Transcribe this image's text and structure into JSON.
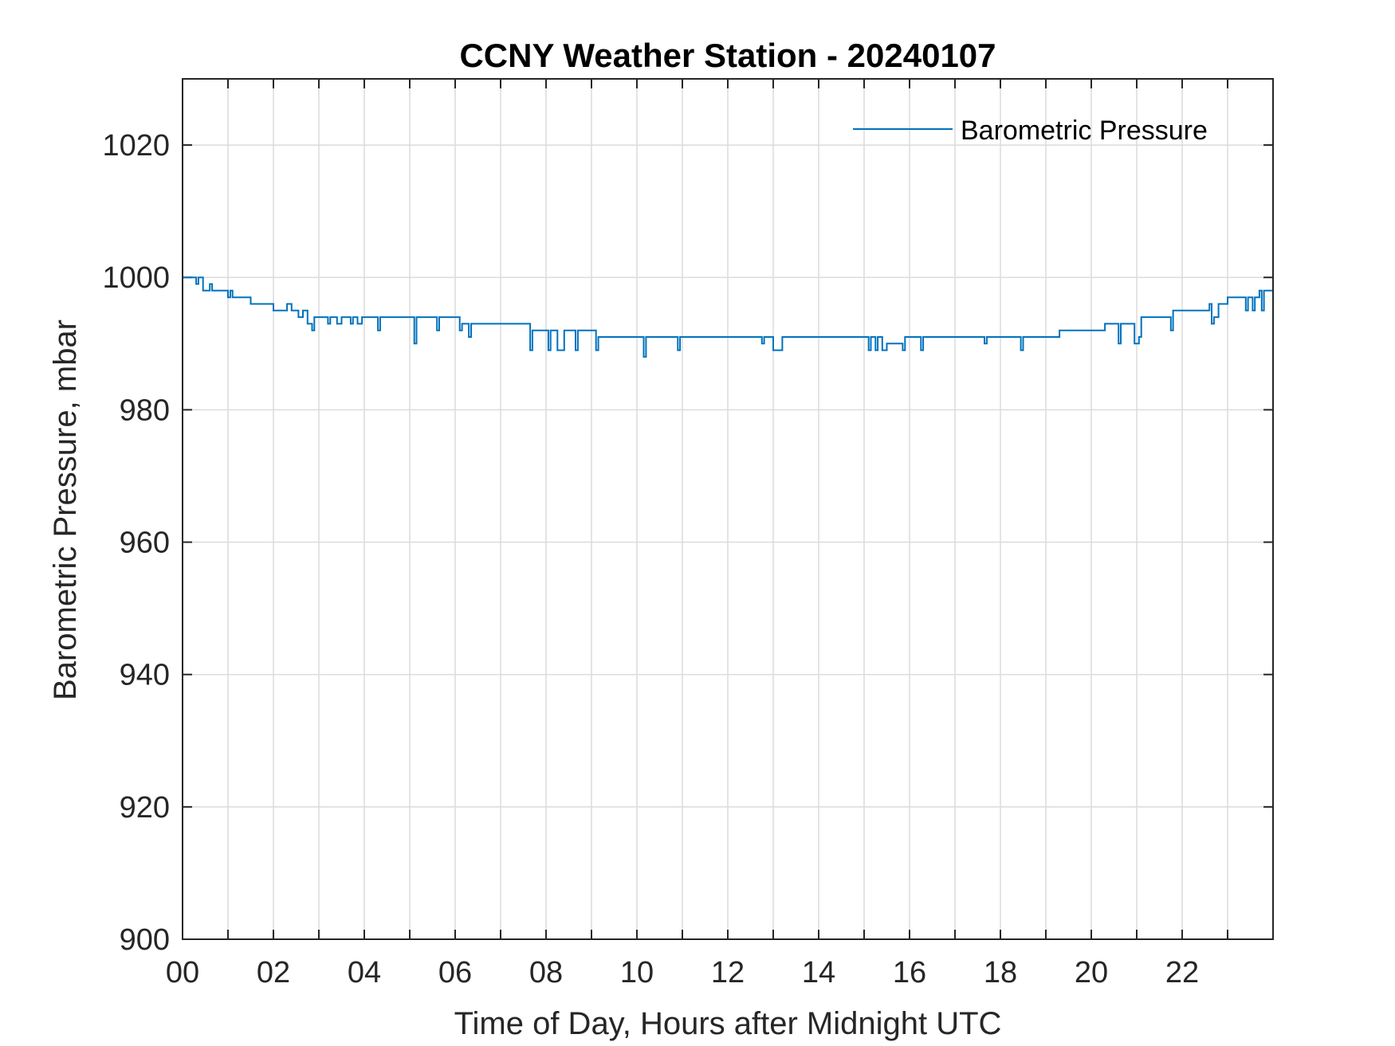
{
  "chart_data": {
    "type": "line",
    "title": "CCNY Weather Station - 20240107",
    "xlabel": "Time of Day, Hours after Midnight UTC",
    "ylabel": "Barometric Pressure, mbar",
    "xlim": [
      0,
      24
    ],
    "ylim": [
      900,
      1030
    ],
    "x_ticks": [
      0,
      2,
      4,
      6,
      8,
      10,
      12,
      14,
      16,
      18,
      20,
      22
    ],
    "x_tick_labels": [
      "00",
      "02",
      "04",
      "06",
      "08",
      "10",
      "12",
      "14",
      "16",
      "18",
      "20",
      "22"
    ],
    "x_minor_grid": [
      1,
      3,
      5,
      7,
      9,
      11,
      13,
      15,
      17,
      19,
      21,
      23
    ],
    "y_ticks": [
      900,
      920,
      940,
      960,
      980,
      1000,
      1020
    ],
    "y_tick_labels": [
      "900",
      "920",
      "940",
      "960",
      "980",
      "1000",
      "1020"
    ],
    "grid": true,
    "legend": {
      "position": "top-right",
      "entries": [
        "Barometric Pressure"
      ]
    },
    "series": [
      {
        "name": "Barometric Pressure",
        "color": "#0072BD",
        "step": true,
        "x": [
          0,
          0.3,
          0.35,
          0.45,
          0.6,
          0.65,
          0.7,
          1.0,
          1.05,
          1.1,
          1.2,
          1.5,
          2.0,
          2.3,
          2.4,
          2.45,
          2.55,
          2.65,
          2.75,
          2.85,
          2.9,
          3.2,
          3.25,
          3.4,
          3.5,
          3.7,
          3.75,
          3.85,
          3.95,
          4.3,
          4.35,
          5.1,
          5.15,
          5.6,
          5.65,
          6.1,
          6.15,
          6.3,
          6.35,
          7.65,
          7.7,
          8.05,
          8.1,
          8.25,
          8.4,
          8.65,
          8.7,
          9.1,
          9.15,
          10.15,
          10.2,
          10.9,
          10.95,
          12.75,
          12.8,
          13.0,
          13.2,
          15.1,
          15.15,
          15.25,
          15.3,
          15.4,
          15.5,
          15.85,
          15.9,
          16.25,
          16.3,
          17.65,
          17.7,
          18.45,
          18.5,
          19.3,
          20.3,
          20.6,
          20.65,
          20.95,
          21.05,
          21.1,
          21.75,
          21.8,
          22.6,
          22.65,
          22.7,
          22.8,
          23.0,
          23.4,
          23.45,
          23.55,
          23.6,
          23.7,
          23.75,
          23.8,
          23.85,
          24.0
        ],
        "y": [
          1000,
          999,
          1000,
          998,
          999,
          998,
          998,
          997,
          998,
          997,
          997,
          996,
          995,
          996,
          995,
          995,
          994,
          995,
          993,
          992,
          994,
          993,
          994,
          993,
          994,
          993,
          994,
          993,
          994,
          992,
          994,
          990,
          994,
          992,
          994,
          992,
          993,
          991,
          993,
          989,
          992,
          989,
          992,
          989,
          992,
          989,
          992,
          989,
          991,
          988,
          991,
          989,
          991,
          990,
          991,
          989,
          991,
          989,
          991,
          989,
          991,
          989,
          990,
          989,
          991,
          989,
          991,
          990,
          991,
          989,
          991,
          992,
          993,
          990,
          993,
          990,
          991,
          994,
          992,
          995,
          996,
          993,
          994,
          996,
          997,
          995,
          997,
          995,
          997,
          998,
          995,
          998,
          998,
          998
        ]
      }
    ]
  }
}
